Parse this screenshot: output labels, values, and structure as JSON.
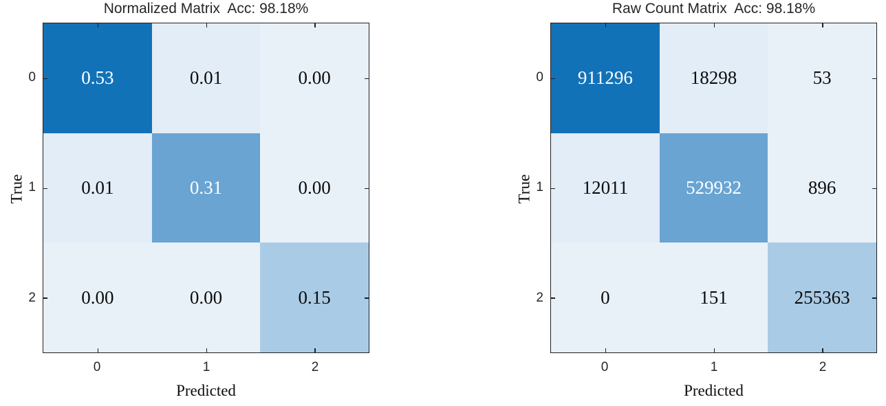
{
  "colors": {
    "dark_blue": "#1272b8",
    "medium_blue": "#69a4d2",
    "light_medium_blue": "#aacbe6",
    "light_blue": "#e2edf7",
    "lightest_blue": "#e9f1f8",
    "white_text": "#ffffff",
    "black_text": "#0c0c0c"
  },
  "plots": [
    {
      "title": "Normalized Matrix  Acc: 98.18%",
      "ylabel": "True",
      "xlabel": "Predicted",
      "yticks": [
        "0",
        "1",
        "2"
      ],
      "xticks": [
        "0",
        "1",
        "2"
      ],
      "cells": [
        [
          {
            "value": "0.53",
            "bg": "#1272b8",
            "fg": "#ffffff"
          },
          {
            "value": "0.01",
            "bg": "#e2edf7",
            "fg": "#0c0c0c"
          },
          {
            "value": "0.00",
            "bg": "#e9f1f8",
            "fg": "#0c0c0c"
          }
        ],
        [
          {
            "value": "0.01",
            "bg": "#e2edf7",
            "fg": "#0c0c0c"
          },
          {
            "value": "0.31",
            "bg": "#69a4d2",
            "fg": "#ffffff"
          },
          {
            "value": "0.00",
            "bg": "#e9f1f8",
            "fg": "#0c0c0c"
          }
        ],
        [
          {
            "value": "0.00",
            "bg": "#e9f1f8",
            "fg": "#0c0c0c"
          },
          {
            "value": "0.00",
            "bg": "#e9f1f8",
            "fg": "#0c0c0c"
          },
          {
            "value": "0.15",
            "bg": "#aacbe6",
            "fg": "#0c0c0c"
          }
        ]
      ]
    },
    {
      "title": "Raw Count Matrix  Acc: 98.18%",
      "ylabel": "True",
      "xlabel": "Predicted",
      "yticks": [
        "0",
        "1",
        "2"
      ],
      "xticks": [
        "0",
        "1",
        "2"
      ],
      "cells": [
        [
          {
            "value": "911296",
            "bg": "#1272b8",
            "fg": "#ffffff"
          },
          {
            "value": "18298",
            "bg": "#e2edf7",
            "fg": "#0c0c0c"
          },
          {
            "value": "53",
            "bg": "#e9f1f8",
            "fg": "#0c0c0c"
          }
        ],
        [
          {
            "value": "12011",
            "bg": "#e2edf7",
            "fg": "#0c0c0c"
          },
          {
            "value": "529932",
            "bg": "#69a4d2",
            "fg": "#ffffff"
          },
          {
            "value": "896",
            "bg": "#e9f1f8",
            "fg": "#0c0c0c"
          }
        ],
        [
          {
            "value": "0",
            "bg": "#e9f1f8",
            "fg": "#0c0c0c"
          },
          {
            "value": "151",
            "bg": "#e9f1f8",
            "fg": "#0c0c0c"
          },
          {
            "value": "255363",
            "bg": "#aacbe6",
            "fg": "#0c0c0c"
          }
        ]
      ]
    }
  ],
  "chart_data": [
    {
      "type": "heatmap",
      "title": "Normalized Matrix  Acc: 98.18%",
      "xlabel": "Predicted",
      "ylabel": "True",
      "x_categories": [
        "0",
        "1",
        "2"
      ],
      "y_categories": [
        "0",
        "1",
        "2"
      ],
      "values": [
        [
          0.53,
          0.01,
          0.0
        ],
        [
          0.01,
          0.31,
          0.0
        ],
        [
          0.0,
          0.0,
          0.15
        ]
      ],
      "accuracy": "98.18%",
      "colormap": "Blues",
      "grid": false,
      "legend": false
    },
    {
      "type": "heatmap",
      "title": "Raw Count Matrix  Acc: 98.18%",
      "xlabel": "Predicted",
      "ylabel": "True",
      "x_categories": [
        "0",
        "1",
        "2"
      ],
      "y_categories": [
        "0",
        "1",
        "2"
      ],
      "values": [
        [
          911296,
          18298,
          53
        ],
        [
          12011,
          529932,
          896
        ],
        [
          0,
          151,
          255363
        ]
      ],
      "accuracy": "98.18%",
      "colormap": "Blues",
      "grid": false,
      "legend": false
    }
  ]
}
